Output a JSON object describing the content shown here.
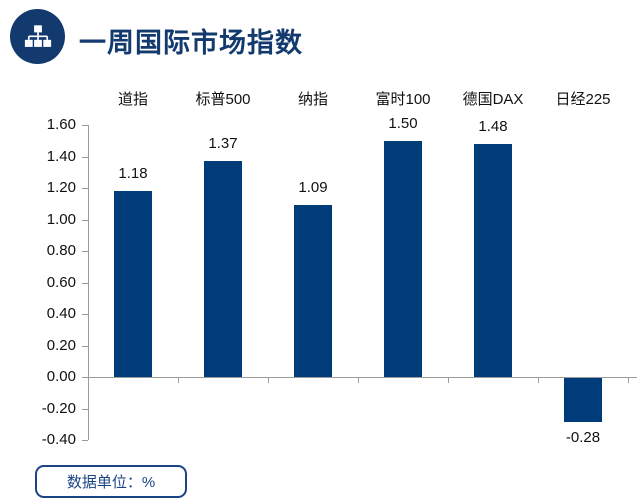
{
  "header": {
    "title": "一周国际市场指数",
    "icon": "sitemap-icon"
  },
  "footer": {
    "label": "数据单位：%"
  },
  "colors": {
    "bar": "#003B7A",
    "title_navy": "#123A6E",
    "axis_gray": "#9B9B9B",
    "text_black": "#111111",
    "footer_navy": "#1B4484"
  },
  "chart_data": {
    "type": "bar",
    "title": "一周国际市场指数",
    "categories": [
      "道指",
      "标普500",
      "纳指",
      "富时100",
      "德国DAX",
      "日经225"
    ],
    "values": [
      1.18,
      1.37,
      1.09,
      1.5,
      1.48,
      -0.28
    ],
    "data_labels": [
      "1.18",
      "1.37",
      "1.09",
      "1.50",
      "1.48",
      "-0.28"
    ],
    "xlabel": "",
    "ylabel": "",
    "unit": "%",
    "ylim": [
      -0.4,
      1.6
    ],
    "ytick_step": 0.2,
    "ytick_labels": [
      "1.60",
      "1.40",
      "1.20",
      "1.00",
      "0.80",
      "0.60",
      "0.40",
      "0.20",
      "0.00",
      "-0.20",
      "-0.40"
    ],
    "category_label_position": "top",
    "data_label_position": "outside-end",
    "grid": false,
    "legend": false
  }
}
